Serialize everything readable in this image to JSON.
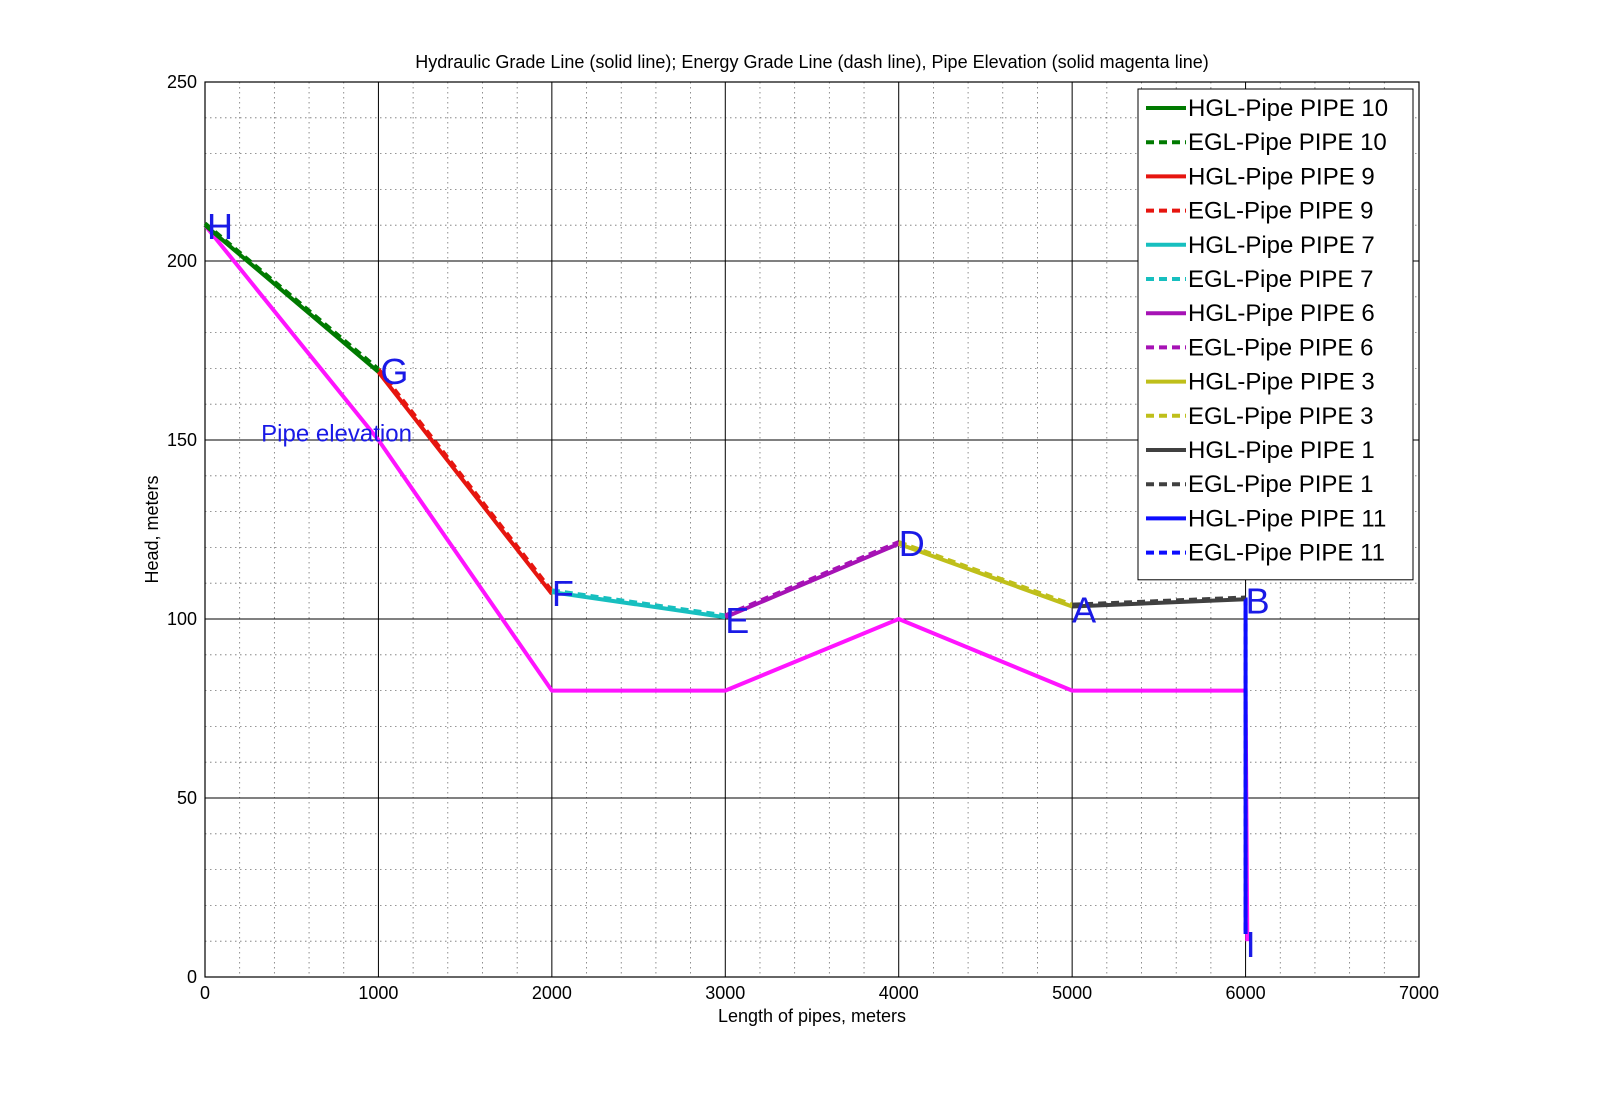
{
  "chart_data": {
    "type": "line",
    "title": "Hydraulic Grade Line (solid line); Energy Grade Line (dash line), Pipe Elevation (solid magenta line)",
    "xlabel": "Length of pipes, meters",
    "ylabel": "Head, meters",
    "xlim": [
      0,
      7000
    ],
    "ylim": [
      0,
      250
    ],
    "xticks": [
      0,
      1000,
      2000,
      3000,
      4000,
      5000,
      6000,
      7000
    ],
    "yticks": [
      0,
      50,
      100,
      150,
      200,
      250
    ],
    "grid": true,
    "minor_grid": true,
    "legend_position": "top-right",
    "series": [
      {
        "name": "HGL-Pipe PIPE 10",
        "color": "#007a00",
        "style": "solid",
        "x": [
          0,
          1000
        ],
        "y": [
          210,
          169
        ]
      },
      {
        "name": "EGL-Pipe PIPE 10",
        "color": "#007a00",
        "style": "dash",
        "x": [
          0,
          1000
        ],
        "y": [
          210.5,
          169.8
        ]
      },
      {
        "name": "HGL-Pipe PIPE 9",
        "color": "#e6150f",
        "style": "solid",
        "x": [
          1000,
          2000
        ],
        "y": [
          169,
          107
        ]
      },
      {
        "name": "EGL-Pipe PIPE 9",
        "color": "#e6150f",
        "style": "dash",
        "x": [
          1000,
          2000
        ],
        "y": [
          169.8,
          107.8
        ]
      },
      {
        "name": "HGL-Pipe PIPE 7",
        "color": "#17bfbf",
        "style": "solid",
        "x": [
          2000,
          3000
        ],
        "y": [
          107.5,
          100.5
        ]
      },
      {
        "name": "EGL-Pipe PIPE 7",
        "color": "#17bfbf",
        "style": "dash",
        "x": [
          2000,
          3000
        ],
        "y": [
          108,
          101
        ]
      },
      {
        "name": "HGL-Pipe PIPE 6",
        "color": "#a612b5",
        "style": "solid",
        "x": [
          3000,
          4000
        ],
        "y": [
          100.5,
          121
        ]
      },
      {
        "name": "EGL-Pipe PIPE 6",
        "color": "#a612b5",
        "style": "dash",
        "x": [
          3000,
          4000
        ],
        "y": [
          101,
          121.5
        ]
      },
      {
        "name": "HGL-Pipe PIPE 3",
        "color": "#bfbf1a",
        "style": "solid",
        "x": [
          4000,
          5000
        ],
        "y": [
          121,
          103.5
        ]
      },
      {
        "name": "EGL-Pipe PIPE 3",
        "color": "#bfbf1a",
        "style": "dash",
        "x": [
          4000,
          5000
        ],
        "y": [
          121.5,
          104
        ]
      },
      {
        "name": "HGL-Pipe PIPE 1",
        "color": "#404040",
        "style": "solid",
        "x": [
          5000,
          6000
        ],
        "y": [
          103.5,
          105.5
        ]
      },
      {
        "name": "EGL-Pipe PIPE 1",
        "color": "#404040",
        "style": "dash",
        "x": [
          5000,
          6000
        ],
        "y": [
          104,
          106
        ]
      },
      {
        "name": "HGL-Pipe PIPE 11",
        "color": "#0d0dff",
        "style": "solid",
        "x": [
          6000,
          6000
        ],
        "y": [
          105.5,
          12
        ]
      },
      {
        "name": "EGL-Pipe PIPE 11",
        "color": "#0d0dff",
        "style": "dash",
        "x": [
          6000,
          6000
        ],
        "y": [
          106,
          12.5
        ]
      }
    ],
    "pipe_elevation": {
      "color": "#ff14ff",
      "style": "solid",
      "x": [
        0,
        1000,
        2000,
        3000,
        4000,
        5000,
        6000,
        6010
      ],
      "y": [
        210,
        150,
        80,
        80,
        100,
        80,
        80,
        10
      ]
    },
    "point_labels": [
      {
        "text": "H",
        "x": 0,
        "y": 210
      },
      {
        "text": "G",
        "x": 1000,
        "y": 169
      },
      {
        "text": "F",
        "x": 2000,
        "y": 107
      },
      {
        "text": "E",
        "x": 3000,
        "y": 100.5
      },
      {
        "text": "D",
        "x": 4000,
        "y": 121
      },
      {
        "text": "A",
        "x": 5000,
        "y": 103.5
      },
      {
        "text": "B",
        "x": 6000,
        "y": 105.5
      },
      {
        "text": "I",
        "x": 6000,
        "y": 10
      }
    ],
    "annotations": [
      {
        "text": "Pipe elevation",
        "x": 220,
        "y": 153
      }
    ]
  }
}
